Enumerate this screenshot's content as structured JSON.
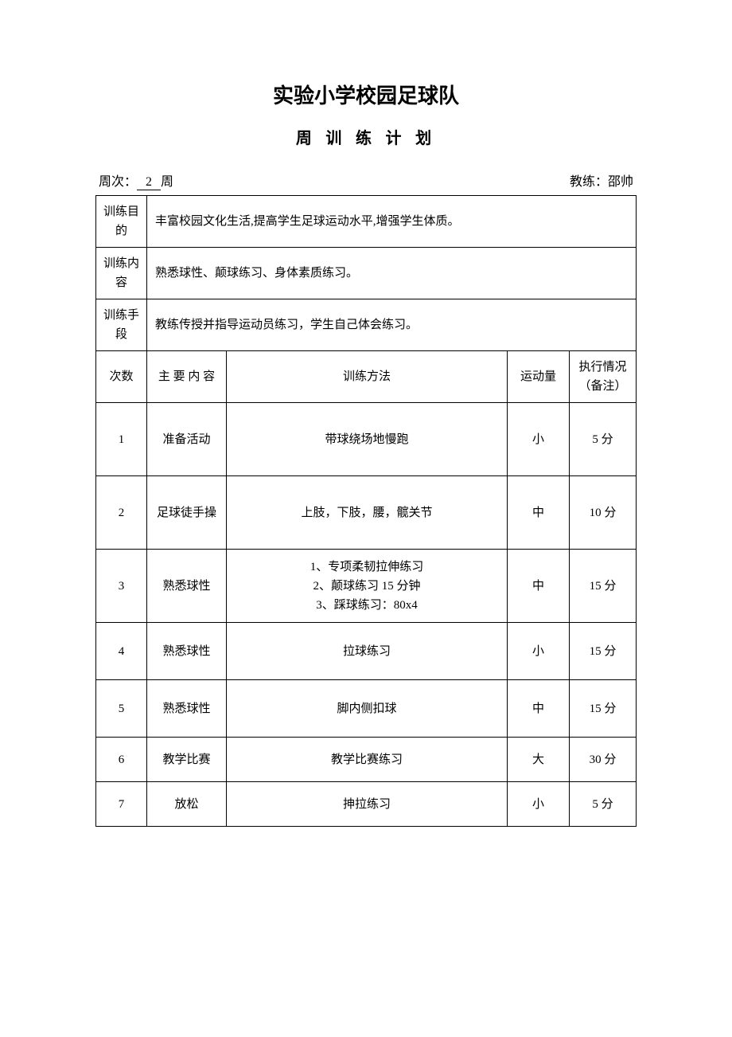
{
  "title": "实验小学校园足球队",
  "subtitle": "周 训 练 计 划",
  "meta": {
    "week_label_prefix": "周次：",
    "week_value": "2",
    "week_label_suffix": "周",
    "coach_label": "教练：",
    "coach_name": "邵帅"
  },
  "info_rows": [
    {
      "label": "训练目的",
      "text": "丰富校园文化生活,提高学生足球运动水平,增强学生体质。"
    },
    {
      "label": "训练内容",
      "text": "熟悉球性、颠球练习、身体素质练习。"
    },
    {
      "label": "训练手段",
      "text": "教练传授并指导运动员练习，学生自己体会练习。"
    }
  ],
  "columns": {
    "num": "次数",
    "main": "主 要 内 容",
    "method": "训练方法",
    "amount": "运动量",
    "notes": "执行情况（备注）"
  },
  "rows": [
    {
      "num": "1",
      "main": "准备活动",
      "method": "带球绕场地慢跑",
      "amount": "小",
      "notes": "5 分",
      "h": "tall"
    },
    {
      "num": "2",
      "main": "足球徒手操",
      "method": "上肢，下肢，腰，髋关节",
      "amount": "中",
      "notes": "10 分",
      "h": "tall"
    },
    {
      "num": "3",
      "main": "熟悉球性",
      "method": "1、专项柔韧拉伸练习\n2、颠球练习 15 分钟\n3、踩球练习：80x4",
      "amount": "中",
      "notes": "15 分",
      "h": "tall"
    },
    {
      "num": "4",
      "main": "熟悉球性",
      "method": "拉球练习",
      "amount": "小",
      "notes": "15 分",
      "h": "med"
    },
    {
      "num": "5",
      "main": "熟悉球性",
      "method": "脚内侧扣球",
      "amount": "中",
      "notes": "15 分",
      "h": "med"
    },
    {
      "num": "6",
      "main": "教学比赛",
      "method": "教学比赛练习",
      "amount": "大",
      "notes": "30 分",
      "h": "short"
    },
    {
      "num": "7",
      "main": "放松",
      "method": "抻拉练习",
      "amount": "小",
      "notes": "5 分",
      "h": "short"
    }
  ]
}
